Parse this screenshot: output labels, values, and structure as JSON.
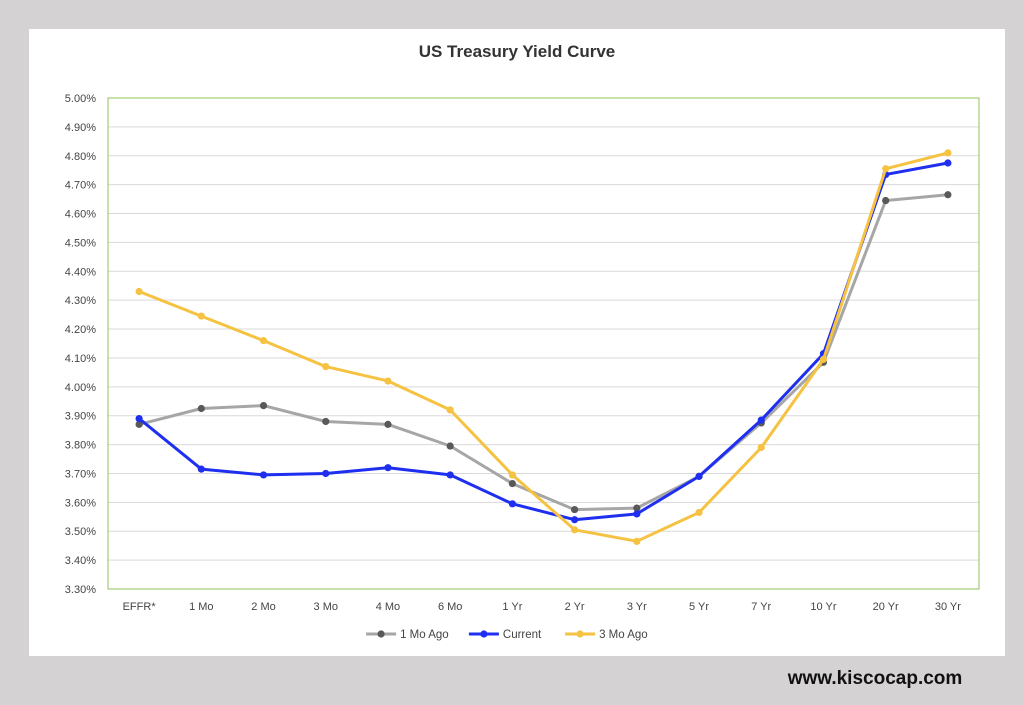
{
  "footer": {
    "website": "www.kiscocap.com"
  },
  "chart_data": {
    "type": "line",
    "title": "US Treasury Yield Curve",
    "xlabel": "",
    "ylabel": "",
    "categories": [
      "EFFR*",
      "1 Mo",
      "2 Mo",
      "3 Mo",
      "4 Mo",
      "6 Mo",
      "1 Yr",
      "2 Yr",
      "3 Yr",
      "5 Yr",
      "7 Yr",
      "10 Yr",
      "20 Yr",
      "30 Yr"
    ],
    "ylim": [
      3.3,
      5.0
    ],
    "yticks": [
      "3.30%",
      "3.40%",
      "3.50%",
      "3.60%",
      "3.70%",
      "3.80%",
      "3.90%",
      "4.00%",
      "4.10%",
      "4.20%",
      "4.30%",
      "4.40%",
      "4.50%",
      "4.60%",
      "4.70%",
      "4.80%",
      "4.90%",
      "5.00%"
    ],
    "grid": true,
    "legend_position": "bottom",
    "series": [
      {
        "name": "1 Mo Ago",
        "line_color": "#a6a6a6",
        "marker_color": "#595959",
        "values": [
          3.87,
          3.925,
          3.935,
          3.88,
          3.87,
          3.795,
          3.665,
          3.575,
          3.58,
          3.69,
          3.875,
          4.085,
          4.645,
          4.665
        ]
      },
      {
        "name": "Current",
        "line_color": "#1f2ff0",
        "marker_color": "#1f2ff0",
        "values": [
          3.89,
          3.715,
          3.695,
          3.7,
          3.72,
          3.695,
          3.595,
          3.54,
          3.56,
          3.69,
          3.885,
          4.115,
          4.735,
          4.775
        ]
      },
      {
        "name": "3 Mo Ago",
        "line_color": "#f5c242",
        "marker_color": "#f5c242",
        "values": [
          4.33,
          4.245,
          4.16,
          4.07,
          4.02,
          3.92,
          3.695,
          3.505,
          3.465,
          3.565,
          3.79,
          4.095,
          4.755,
          4.81
        ]
      }
    ]
  }
}
